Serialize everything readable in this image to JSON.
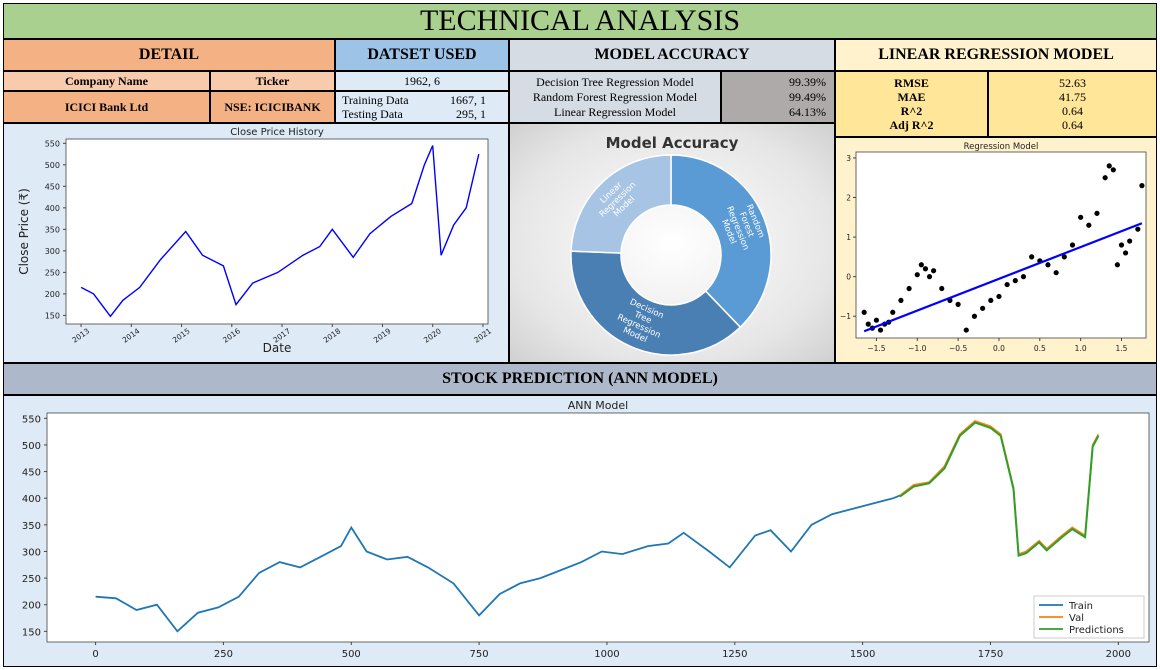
{
  "title": "TECHNICAL ANALYSIS",
  "detail": {
    "header": "DETAIL",
    "col1": "Company Name",
    "col2": "Ticker",
    "company": "ICICI Bank Ltd",
    "ticker": "NSE: ICICIBANK"
  },
  "dataset": {
    "header": "DATSET USED",
    "shape": "1962, 6",
    "training_label": "Training Data",
    "training_value": "1667, 1",
    "testing_label": "Testing Data",
    "testing_value": "295, 1"
  },
  "model_accuracy": {
    "header": "MODEL ACCURACY",
    "rows": [
      {
        "name": "Decision Tree Regression Model",
        "value": "99.39%"
      },
      {
        "name": "Random Forest Regression Model",
        "value": "99.49%"
      },
      {
        "name": "Linear Regression Model",
        "value": "64.13%"
      }
    ]
  },
  "linear_regression": {
    "header": "LINEAR REGRESSION MODEL",
    "rows": [
      {
        "name": "RMSE",
        "value": "52.63"
      },
      {
        "name": "MAE",
        "value": "41.75"
      },
      {
        "name": "R^2",
        "value": "0.64"
      },
      {
        "name": "Adj R^2",
        "value": "0.64"
      }
    ]
  },
  "stock_prediction_header": "STOCK PREDICTION (ANN MODEL)",
  "colors": {
    "title_bg": "#a9d08e",
    "detail_bg": "#f4b183",
    "detail_light": "#f8cbad",
    "dataset_bg": "#9dc3e6",
    "dataset_light": "#deebf7",
    "accuracy_bg": "#d6dce4",
    "accuracy_light": "#aeaaaa",
    "lr_bg": "#fff2cc",
    "lr_light": "#ffe699",
    "ann_bg": "#adb9ca",
    "chart_bg": "#deebf7",
    "price_line": "#0000ff",
    "train": "#1f77b4",
    "val": "#ff7f0e",
    "pred": "#2ca02c"
  },
  "chart_data": [
    {
      "type": "line",
      "title": "Close Price History",
      "xlabel": "Date",
      "ylabel": "Close Price (₹)",
      "x_ticks": [
        "2013",
        "2014",
        "2015",
        "2016",
        "2017",
        "2018",
        "2019",
        "2020",
        "2021"
      ],
      "y_ticks": [
        150,
        200,
        250,
        300,
        350,
        400,
        450,
        500,
        550
      ],
      "ylim": [
        130,
        560
      ],
      "series": [
        {
          "values": [
            {
              "x": "2013-01",
              "y": 215
            },
            {
              "x": "2013-04",
              "y": 200
            },
            {
              "x": "2013-08",
              "y": 148
            },
            {
              "x": "2013-11",
              "y": 185
            },
            {
              "x": "2014-03",
              "y": 215
            },
            {
              "x": "2014-08",
              "y": 280
            },
            {
              "x": "2015-02",
              "y": 345
            },
            {
              "x": "2015-06",
              "y": 290
            },
            {
              "x": "2015-11",
              "y": 265
            },
            {
              "x": "2016-02",
              "y": 175
            },
            {
              "x": "2016-06",
              "y": 225
            },
            {
              "x": "2016-12",
              "y": 250
            },
            {
              "x": "2017-06",
              "y": 290
            },
            {
              "x": "2017-10",
              "y": 310
            },
            {
              "x": "2018-01",
              "y": 350
            },
            {
              "x": "2018-06",
              "y": 285
            },
            {
              "x": "2018-10",
              "y": 340
            },
            {
              "x": "2019-03",
              "y": 380
            },
            {
              "x": "2019-08",
              "y": 410
            },
            {
              "x": "2019-11",
              "y": 500
            },
            {
              "x": "2020-01",
              "y": 545
            },
            {
              "x": "2020-03",
              "y": 290
            },
            {
              "x": "2020-06",
              "y": 360
            },
            {
              "x": "2020-09",
              "y": 400
            },
            {
              "x": "2020-12",
              "y": 525
            }
          ]
        }
      ]
    },
    {
      "type": "pie",
      "title": "Model Accuracy",
      "categories": [
        "Random Forest Regression Model",
        "Decision Tree Regression Model",
        "Linear Regression Model"
      ],
      "values": [
        99.49,
        99.39,
        64.13
      ]
    },
    {
      "type": "scatter",
      "title": "Regression Model",
      "x_ticks": [
        "−1.5",
        "−1.0",
        "−0.5",
        "0.0",
        "0.5",
        "1.0",
        "1.5"
      ],
      "y_ticks": [
        "−1",
        "0",
        "1",
        "2",
        "3"
      ],
      "xlim": [
        -1.75,
        1.8
      ],
      "ylim": [
        -1.55,
        3.15
      ],
      "points": [
        [
          -1.65,
          -0.9
        ],
        [
          -1.6,
          -1.2
        ],
        [
          -1.55,
          -1.3
        ],
        [
          -1.5,
          -1.1
        ],
        [
          -1.45,
          -1.35
        ],
        [
          -1.4,
          -1.2
        ],
        [
          -1.35,
          -1.15
        ],
        [
          -1.3,
          -0.9
        ],
        [
          -1.2,
          -0.6
        ],
        [
          -1.1,
          -0.3
        ],
        [
          -1.0,
          0.05
        ],
        [
          -0.95,
          0.3
        ],
        [
          -0.9,
          0.2
        ],
        [
          -0.85,
          0.0
        ],
        [
          -0.8,
          0.15
        ],
        [
          -0.7,
          -0.3
        ],
        [
          -0.6,
          -0.6
        ],
        [
          -0.5,
          -0.7
        ],
        [
          -0.4,
          -1.35
        ],
        [
          -0.3,
          -1.0
        ],
        [
          -0.2,
          -0.8
        ],
        [
          -0.1,
          -0.6
        ],
        [
          0.0,
          -0.5
        ],
        [
          0.1,
          -0.2
        ],
        [
          0.2,
          -0.1
        ],
        [
          0.3,
          0.0
        ],
        [
          0.4,
          0.5
        ],
        [
          0.5,
          0.4
        ],
        [
          0.6,
          0.3
        ],
        [
          0.7,
          0.1
        ],
        [
          0.8,
          0.5
        ],
        [
          0.9,
          0.8
        ],
        [
          1.0,
          1.5
        ],
        [
          1.1,
          1.3
        ],
        [
          1.2,
          1.6
        ],
        [
          1.3,
          2.5
        ],
        [
          1.35,
          2.8
        ],
        [
          1.4,
          2.7
        ],
        [
          1.45,
          0.3
        ],
        [
          1.5,
          0.8
        ],
        [
          1.55,
          0.6
        ],
        [
          1.6,
          0.9
        ],
        [
          1.7,
          1.2
        ],
        [
          1.75,
          2.3
        ]
      ],
      "fit_line": [
        [
          -1.65,
          -1.38
        ],
        [
          1.75,
          1.35
        ]
      ]
    },
    {
      "type": "line",
      "title": "ANN Model",
      "x_ticks": [
        0,
        250,
        500,
        750,
        1000,
        1250,
        1500,
        1750,
        2000
      ],
      "y_ticks": [
        150,
        200,
        250,
        300,
        350,
        400,
        450,
        500,
        550
      ],
      "xlim": [
        -95,
        2060
      ],
      "ylim": [
        130,
        560
      ],
      "legend": [
        "Train",
        "Val",
        "Predictions"
      ],
      "legend_position": "bottom-right",
      "series": [
        {
          "name": "Train",
          "values": [
            [
              0,
              215
            ],
            [
              40,
              212
            ],
            [
              80,
              190
            ],
            [
              120,
              200
            ],
            [
              160,
              150
            ],
            [
              200,
              185
            ],
            [
              240,
              195
            ],
            [
              280,
              215
            ],
            [
              320,
              260
            ],
            [
              360,
              280
            ],
            [
              400,
              270
            ],
            [
              440,
              290
            ],
            [
              480,
              310
            ],
            [
              500,
              345
            ],
            [
              530,
              300
            ],
            [
              570,
              285
            ],
            [
              610,
              290
            ],
            [
              650,
              270
            ],
            [
              700,
              240
            ],
            [
              750,
              180
            ],
            [
              790,
              220
            ],
            [
              830,
              240
            ],
            [
              870,
              250
            ],
            [
              910,
              265
            ],
            [
              950,
              280
            ],
            [
              990,
              300
            ],
            [
              1030,
              295
            ],
            [
              1080,
              310
            ],
            [
              1120,
              315
            ],
            [
              1150,
              335
            ],
            [
              1200,
              300
            ],
            [
              1240,
              270
            ],
            [
              1290,
              330
            ],
            [
              1320,
              340
            ],
            [
              1360,
              300
            ],
            [
              1400,
              350
            ],
            [
              1440,
              370
            ],
            [
              1480,
              380
            ],
            [
              1520,
              390
            ],
            [
              1560,
              400
            ],
            [
              1573,
              405
            ]
          ]
        },
        {
          "name": "Val",
          "values": [
            [
              1573,
              405
            ],
            [
              1600,
              425
            ],
            [
              1630,
              430
            ],
            [
              1660,
              460
            ],
            [
              1690,
              520
            ],
            [
              1720,
              545
            ],
            [
              1750,
              535
            ],
            [
              1770,
              520
            ],
            [
              1795,
              420
            ],
            [
              1805,
              295
            ],
            [
              1820,
              300
            ],
            [
              1845,
              320
            ],
            [
              1860,
              305
            ],
            [
              1890,
              330
            ],
            [
              1910,
              345
            ],
            [
              1935,
              330
            ],
            [
              1950,
              500
            ],
            [
              1961,
              520
            ]
          ]
        },
        {
          "name": "Predictions",
          "values": [
            [
              1573,
              403
            ],
            [
              1600,
              422
            ],
            [
              1630,
              428
            ],
            [
              1660,
              456
            ],
            [
              1690,
              517
            ],
            [
              1720,
              542
            ],
            [
              1750,
              532
            ],
            [
              1770,
              517
            ],
            [
              1795,
              417
            ],
            [
              1805,
              292
            ],
            [
              1820,
              297
            ],
            [
              1845,
              317
            ],
            [
              1860,
              302
            ],
            [
              1890,
              327
            ],
            [
              1910,
              342
            ],
            [
              1935,
              327
            ],
            [
              1950,
              497
            ],
            [
              1961,
              517
            ]
          ]
        }
      ]
    }
  ]
}
